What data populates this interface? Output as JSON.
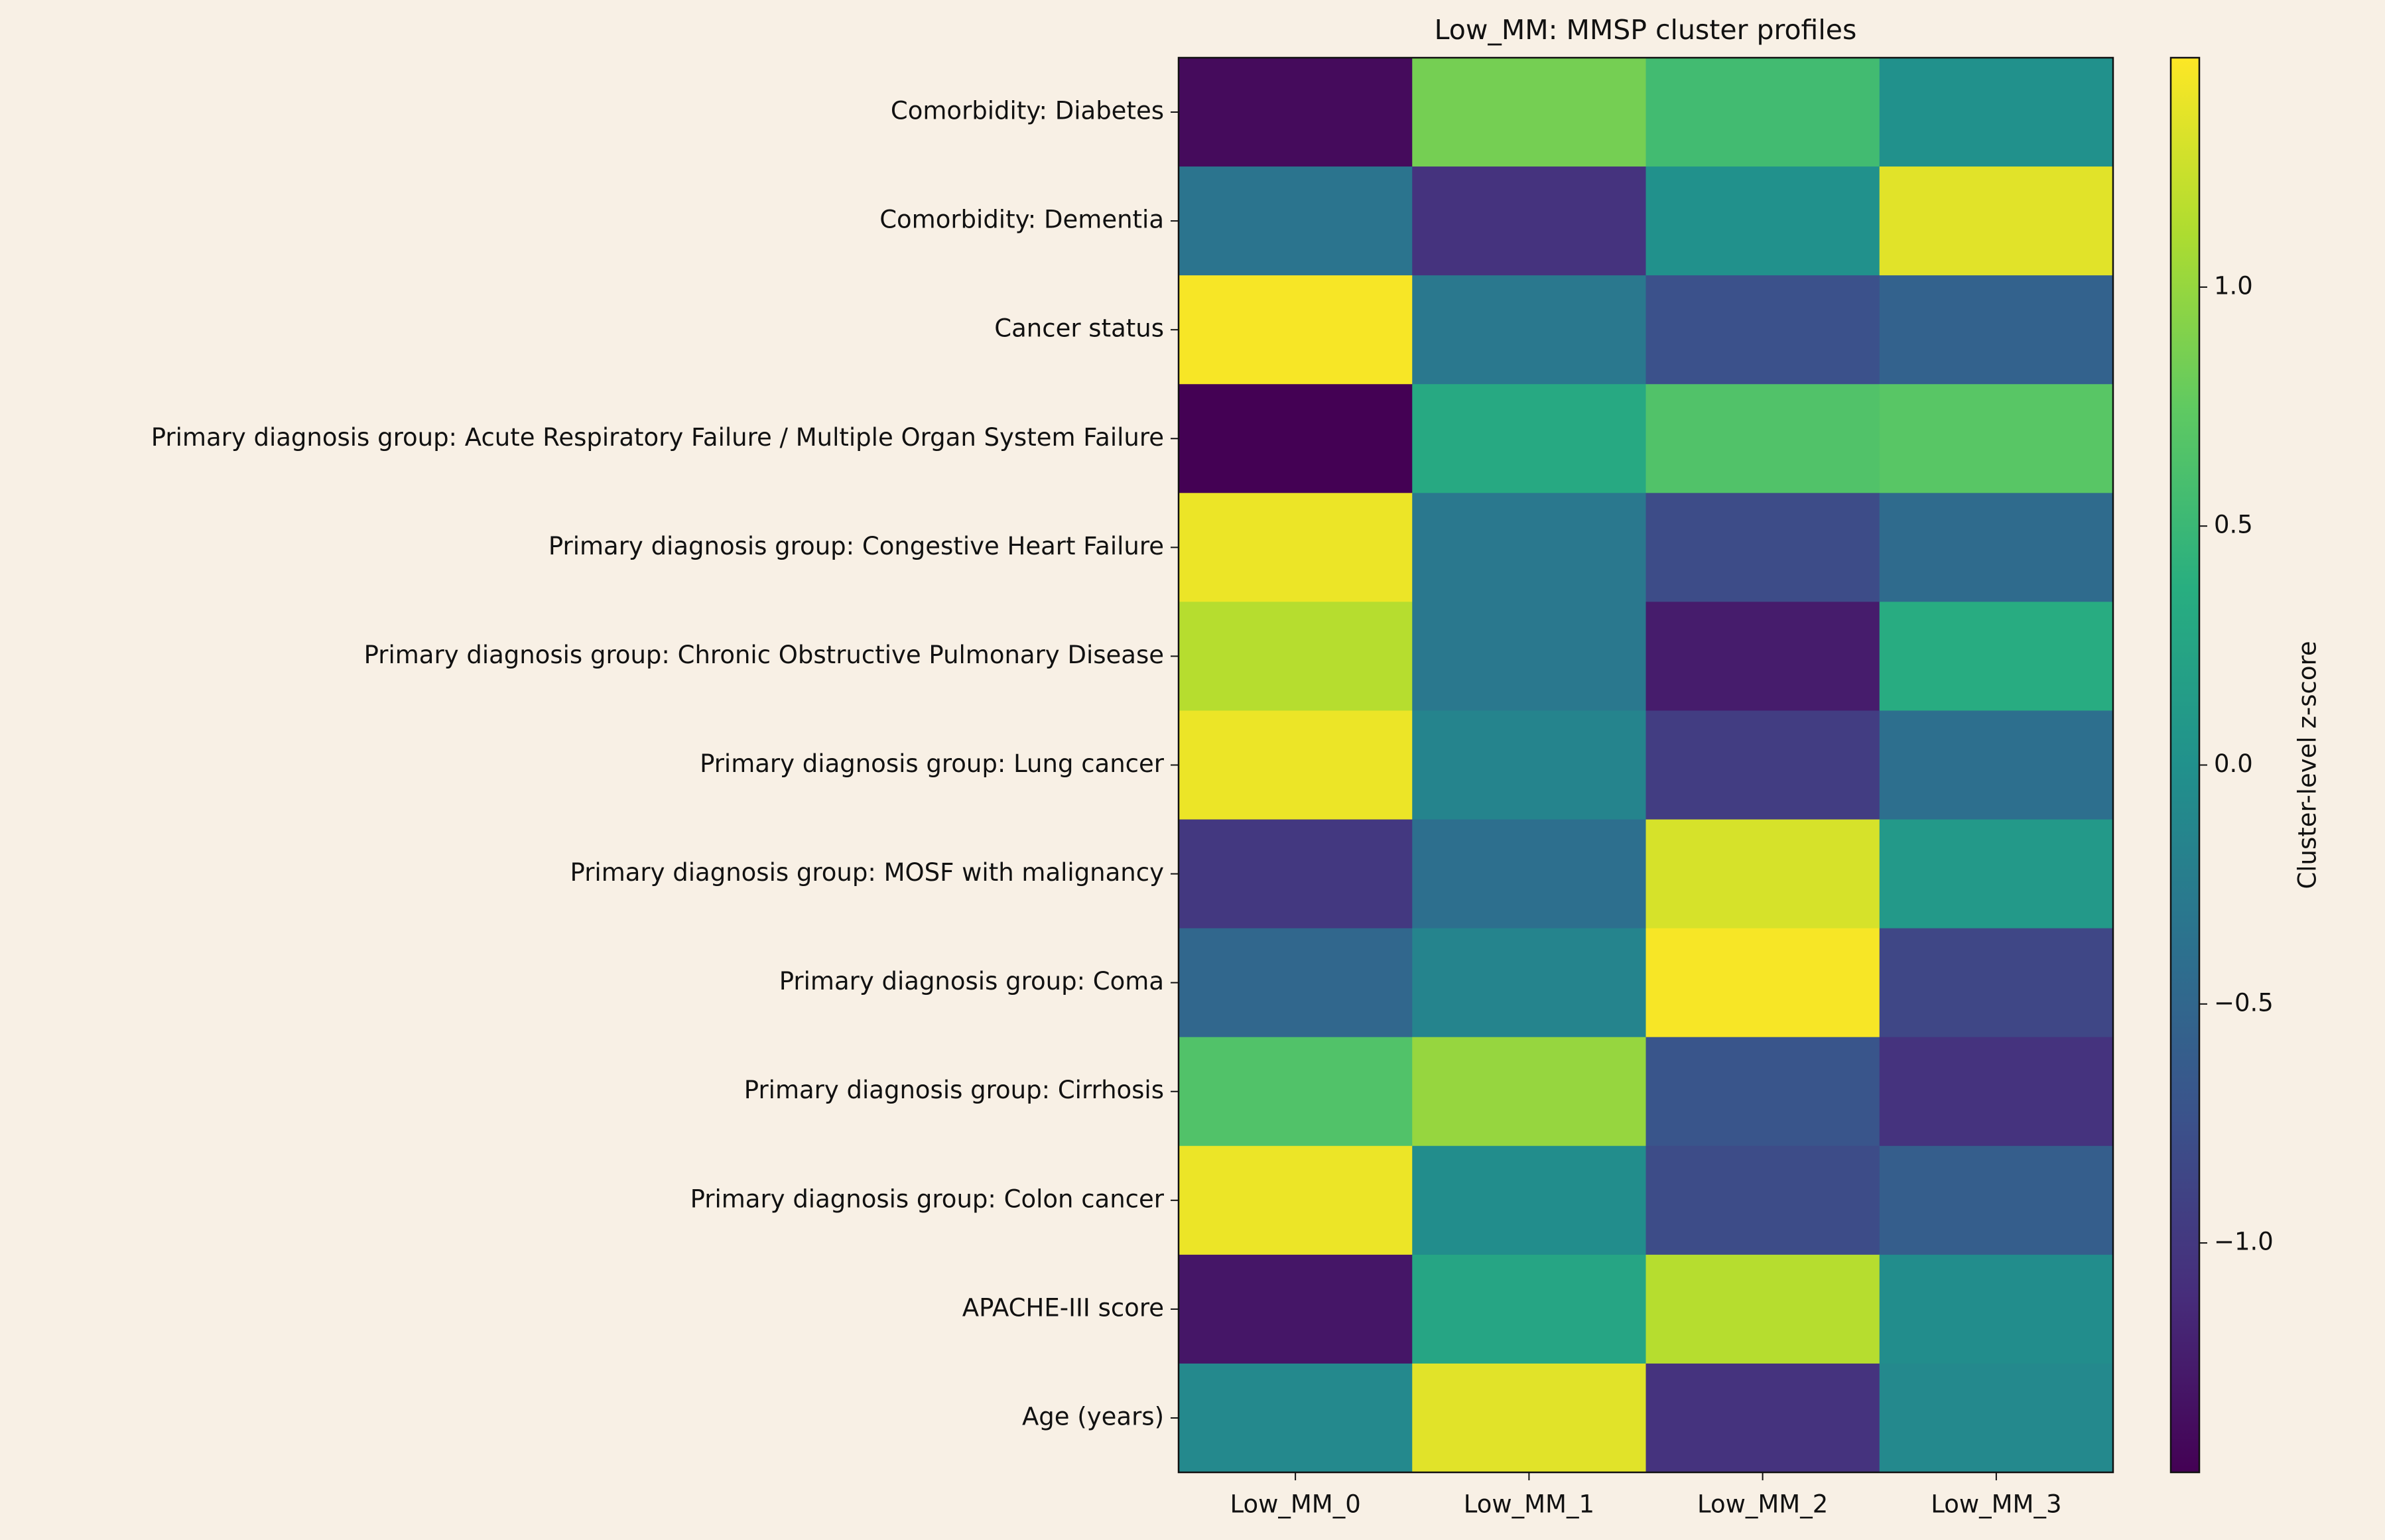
{
  "chart_data": {
    "type": "heatmap",
    "title": "Low_MM: MMSP cluster profiles",
    "categories": [
      "Low_MM_0",
      "Low_MM_1",
      "Low_MM_2",
      "Low_MM_3"
    ],
    "rows": [
      "Comorbidity: Diabetes",
      "Comorbidity: Dementia",
      "Cancer status",
      "Primary diagnosis group: Acute Respiratory Failure / Multiple Organ System Failure",
      "Primary diagnosis group: Congestive Heart Failure",
      "Primary diagnosis group: Chronic Obstructive Pulmonary Disease",
      "Primary diagnosis group: Lung cancer",
      "Primary diagnosis group: MOSF with malignancy",
      "Primary diagnosis group: Coma",
      "Primary diagnosis group: Cirrhosis",
      "Primary diagnosis group: Colon cancer",
      "APACHE-III score",
      "Age (years)"
    ],
    "values": [
      [
        -1.4,
        0.85,
        0.55,
        0.0
      ],
      [
        -0.35,
        -1.05,
        0.0,
        1.35
      ],
      [
        1.45,
        -0.3,
        -0.75,
        -0.55
      ],
      [
        -1.48,
        0.3,
        0.65,
        0.7
      ],
      [
        1.4,
        -0.3,
        -0.8,
        -0.45
      ],
      [
        1.15,
        -0.3,
        -1.25,
        0.35
      ],
      [
        1.4,
        -0.15,
        -0.95,
        -0.4
      ],
      [
        -1.0,
        -0.4,
        1.3,
        0.1
      ],
      [
        -0.5,
        -0.15,
        1.45,
        -0.85
      ],
      [
        0.65,
        1.0,
        -0.7,
        -1.05
      ],
      [
        1.4,
        -0.05,
        -0.8,
        -0.6
      ],
      [
        -1.3,
        0.25,
        1.15,
        -0.05
      ],
      [
        -0.1,
        1.35,
        -1.05,
        -0.1
      ]
    ],
    "colormap": "viridis",
    "colorbar_label": "Cluster-level z-score",
    "clim": [
      -1.48,
      1.48
    ],
    "cticks": [
      {
        "value": -1.0,
        "label": "−1.0"
      },
      {
        "value": -0.5,
        "label": "−0.5"
      },
      {
        "value": 0.0,
        "label": "0.0"
      },
      {
        "value": 0.5,
        "label": "0.5"
      },
      {
        "value": 1.0,
        "label": "1.0"
      }
    ]
  }
}
